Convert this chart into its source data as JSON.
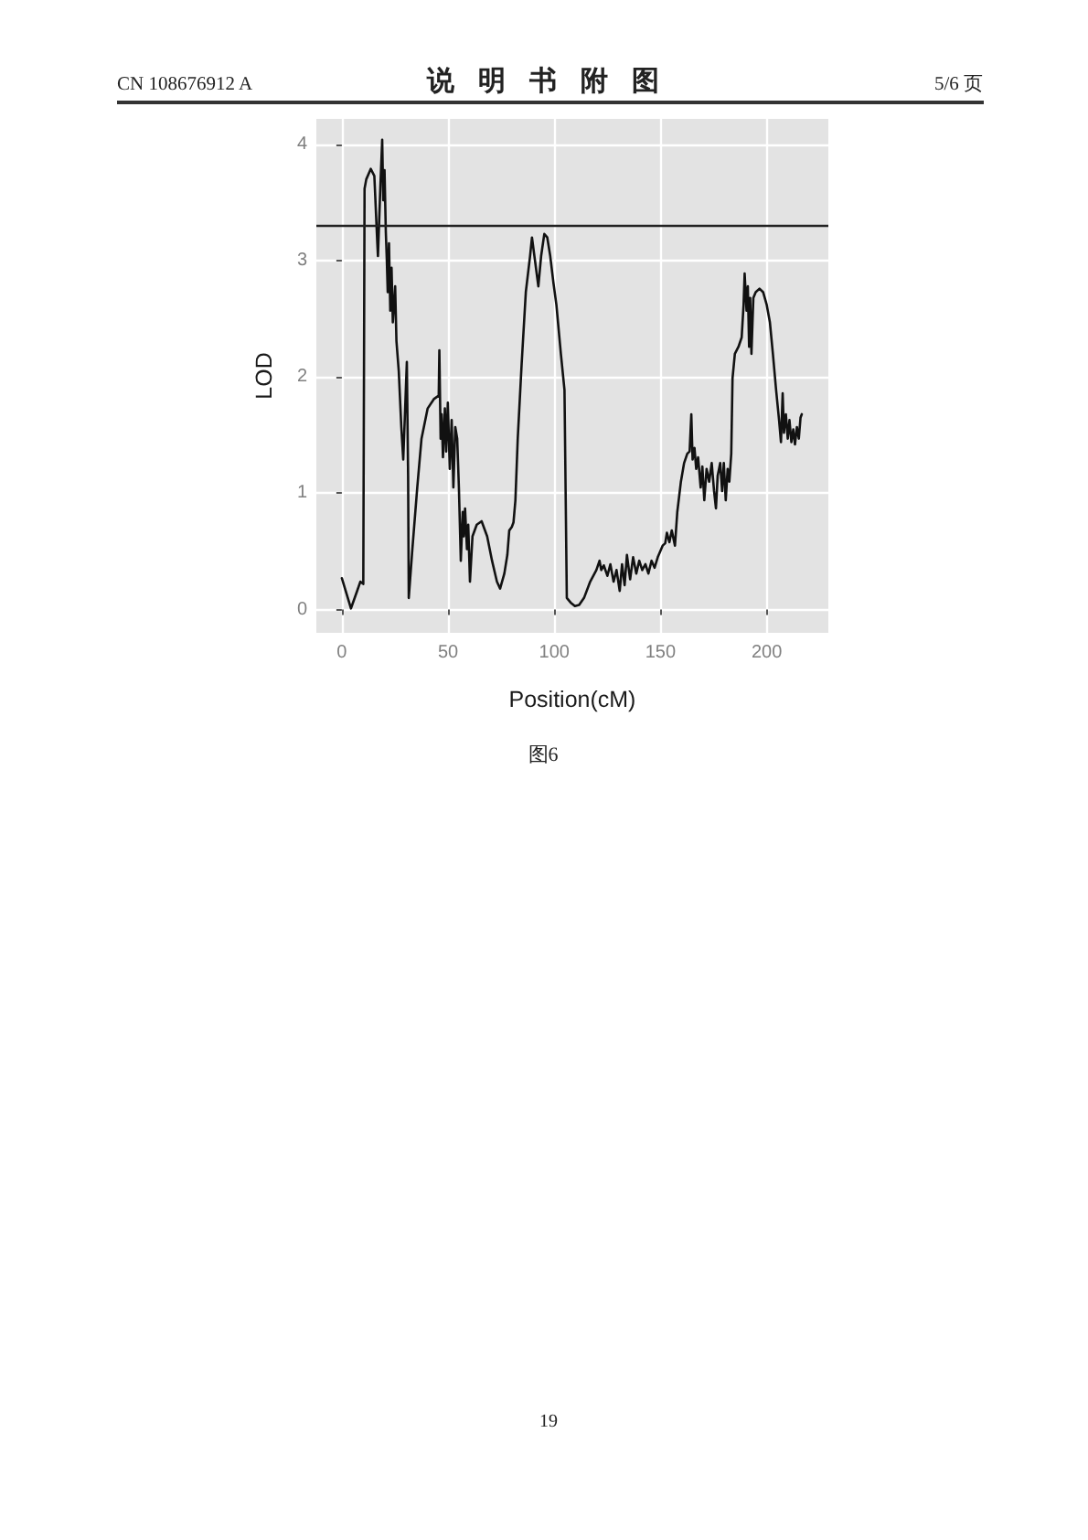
{
  "chart_data": {
    "type": "line",
    "title": "说明书附图",
    "annotations": [
      "CN 108676912 A",
      "5/6 页",
      "图6",
      "19"
    ],
    "xlabel": "Position(cM)",
    "ylabel": "LOD",
    "color": "#111111",
    "x": [
      0,
      4.3,
      7.2,
      8.7,
      10.1,
      10.7,
      11.5,
      13.6,
      15.3,
      16.7,
      17.0,
      18.2,
      19.0,
      19.5,
      20.1,
      20.7,
      21.2,
      21.6,
      22.2,
      22.8,
      23.4,
      24.0,
      25.1,
      25.7,
      26.8,
      28.0,
      28.9,
      29.7,
      30.6,
      31.2,
      31.5,
      33.2,
      35.5,
      37.5,
      40.4,
      43.3,
      45.6,
      45.9,
      46.5,
      47.0,
      47.6,
      48.5,
      49.1,
      49.9,
      50.8,
      51.7,
      52.5,
      53.4,
      54.3,
      55.1,
      56.0,
      56.9,
      57.4,
      58.0,
      58.9,
      59.5,
      60.3,
      61.5,
      63.5,
      65.8,
      68.4,
      70.7,
      73.0,
      74.5,
      76.5,
      77.9,
      78.8,
      80.0,
      80.8,
      81.7,
      82.8,
      84.6,
      86.6,
      88.6,
      89.5,
      91.0,
      92.5,
      93.8,
      95.3,
      96.7,
      98.1,
      99.6,
      101.0,
      103.1,
      104.8,
      105.9,
      107.7,
      109.7,
      111.7,
      114.0,
      116.9,
      119.8,
      121.3,
      122.1,
      123.3,
      125.0,
      126.4,
      127.9,
      129.3,
      130.8,
      131.9,
      133.1,
      134.2,
      135.7,
      137.1,
      138.6,
      140.0,
      141.4,
      142.9,
      144.3,
      145.8,
      147.2,
      148.7,
      151.0,
      152.2,
      153.0,
      154.2,
      155.3,
      156.8,
      157.9,
      159.6,
      161.1,
      162.6,
      163.7,
      164.5,
      165.1,
      166.0,
      166.8,
      167.7,
      168.9,
      169.7,
      170.6,
      171.7,
      172.9,
      174.1,
      175.2,
      176.1,
      176.9,
      178.1,
      179.0,
      179.8,
      180.7,
      181.6,
      182.4,
      183.3,
      183.9,
      185.0,
      186.7,
      188.2,
      189.1,
      189.6,
      190.5,
      191.1,
      191.7,
      192.2,
      192.8,
      193.7,
      194.8,
      196.6,
      198.3,
      200.0,
      201.5,
      202.9,
      204.4,
      205.8,
      206.7,
      207.5,
      208.1,
      209.0,
      209.9,
      210.7,
      211.6,
      212.5,
      213.3,
      214.2,
      215.1,
      215.9,
      216.5
    ],
    "values": [
      0.27,
      0.01,
      0.16,
      0.24,
      0.22,
      3.62,
      3.7,
      3.79,
      3.73,
      3.15,
      3.04,
      3.67,
      4.04,
      3.52,
      3.78,
      3.25,
      2.99,
      2.73,
      3.15,
      2.57,
      2.94,
      2.47,
      2.78,
      2.31,
      2.05,
      1.57,
      1.29,
      1.68,
      2.13,
      1.15,
      0.1,
      0.52,
      1.05,
      1.47,
      1.73,
      1.81,
      1.84,
      2.23,
      1.47,
      1.68,
      1.31,
      1.73,
      1.36,
      1.78,
      1.21,
      1.63,
      1.05,
      1.57,
      1.47,
      1.05,
      0.42,
      0.84,
      0.63,
      0.87,
      0.52,
      0.73,
      0.24,
      0.63,
      0.73,
      0.76,
      0.63,
      0.42,
      0.24,
      0.18,
      0.31,
      0.47,
      0.68,
      0.71,
      0.75,
      0.94,
      1.47,
      2.1,
      2.73,
      3.04,
      3.2,
      2.99,
      2.78,
      3.04,
      3.23,
      3.2,
      3.04,
      2.81,
      2.62,
      2.2,
      1.89,
      0.1,
      0.06,
      0.03,
      0.04,
      0.1,
      0.24,
      0.34,
      0.42,
      0.34,
      0.38,
      0.29,
      0.39,
      0.24,
      0.34,
      0.16,
      0.39,
      0.21,
      0.47,
      0.26,
      0.45,
      0.31,
      0.42,
      0.34,
      0.39,
      0.31,
      0.42,
      0.36,
      0.45,
      0.55,
      0.57,
      0.66,
      0.58,
      0.68,
      0.55,
      0.84,
      1.1,
      1.26,
      1.34,
      1.36,
      1.68,
      1.29,
      1.39,
      1.21,
      1.31,
      1.05,
      1.23,
      0.94,
      1.21,
      1.1,
      1.26,
      1.02,
      0.87,
      1.15,
      1.26,
      1.02,
      1.26,
      0.94,
      1.21,
      1.1,
      1.34,
      1.99,
      2.2,
      2.26,
      2.34,
      2.62,
      2.89,
      2.57,
      2.78,
      2.26,
      2.68,
      2.2,
      2.68,
      2.73,
      2.76,
      2.73,
      2.62,
      2.47,
      2.2,
      1.89,
      1.63,
      1.44,
      1.86,
      1.52,
      1.68,
      1.47,
      1.63,
      1.44,
      1.55,
      1.42,
      1.57,
      1.47,
      1.65,
      1.68
    ],
    "xlim": [
      -12,
      229
    ],
    "ylim": [
      -0.2,
      4.22
    ],
    "xticks": [
      0,
      50,
      100,
      150,
      200
    ],
    "yticks": [
      0,
      1,
      2,
      3,
      4
    ],
    "grid": true,
    "ref_lines": [
      {
        "axis": "y",
        "value": 3.3,
        "color": "#222222"
      }
    ]
  }
}
